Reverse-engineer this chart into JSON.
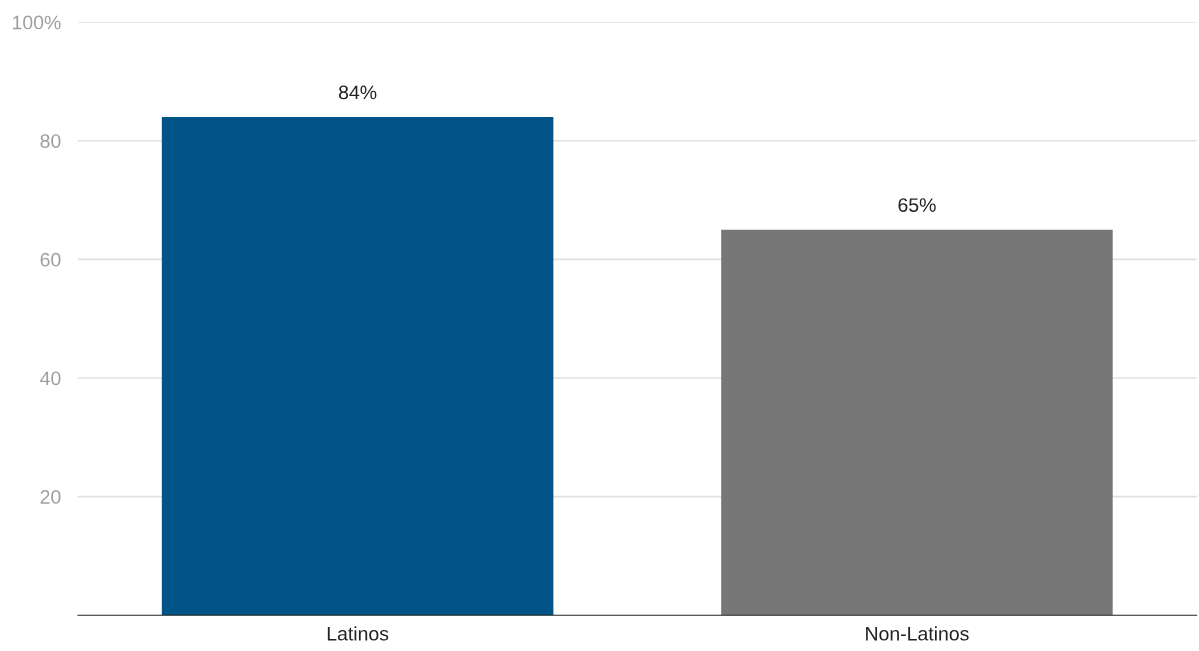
{
  "chart_data": {
    "type": "bar",
    "categories": [
      "Latinos",
      "Non-Latinos"
    ],
    "values": [
      84,
      65
    ],
    "colors": [
      "#005487",
      "#777777"
    ],
    "value_labels": [
      "84%",
      "65%"
    ],
    "ylim": [
      0,
      100
    ],
    "yticks": [
      20,
      40,
      60,
      80,
      {
        "value": 100,
        "label": "100%"
      }
    ],
    "grid": "y"
  }
}
